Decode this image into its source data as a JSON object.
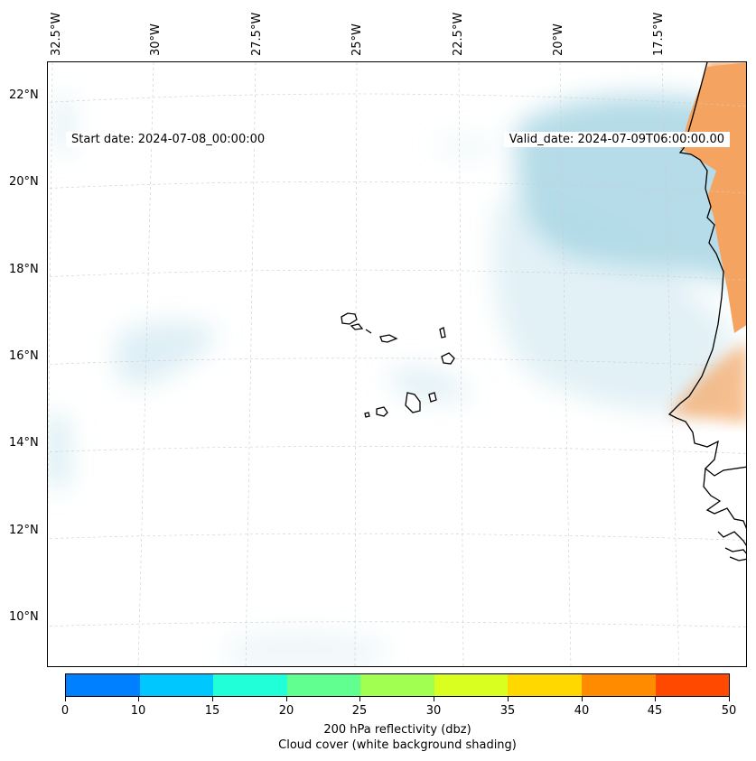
{
  "map": {
    "start_date": "Start date: 2024-07-08_00:00:00",
    "valid_date": "Valid_date: 2024-07-09T06:00:00.00",
    "lon_labels": [
      "32.5°W",
      "30°W",
      "27.5°W",
      "25°W",
      "22.5°W",
      "20°W",
      "17.5°W"
    ],
    "lat_labels": [
      "22°N",
      "20°N",
      "18°N",
      "16°N",
      "14°N",
      "12°N",
      "10°N"
    ]
  },
  "colorbar": {
    "ticks": [
      "0",
      "10",
      "15",
      "20",
      "25",
      "30",
      "35",
      "40",
      "45",
      "50"
    ],
    "colors": [
      "#0080ff",
      "#00c8ff",
      "#20ffd8",
      "#60ff90",
      "#a0ff50",
      "#d8ff20",
      "#ffd800",
      "#ff8c00",
      "#ff4800"
    ],
    "label_line1": "200 hPa reflectivity (dbz)",
    "label_line2": "Cloud cover (white background shading)"
  },
  "colors": {
    "cloud": "#add8e6",
    "land_shade": "#f4a460",
    "coast": "#000000",
    "grid": "#cccccc"
  }
}
